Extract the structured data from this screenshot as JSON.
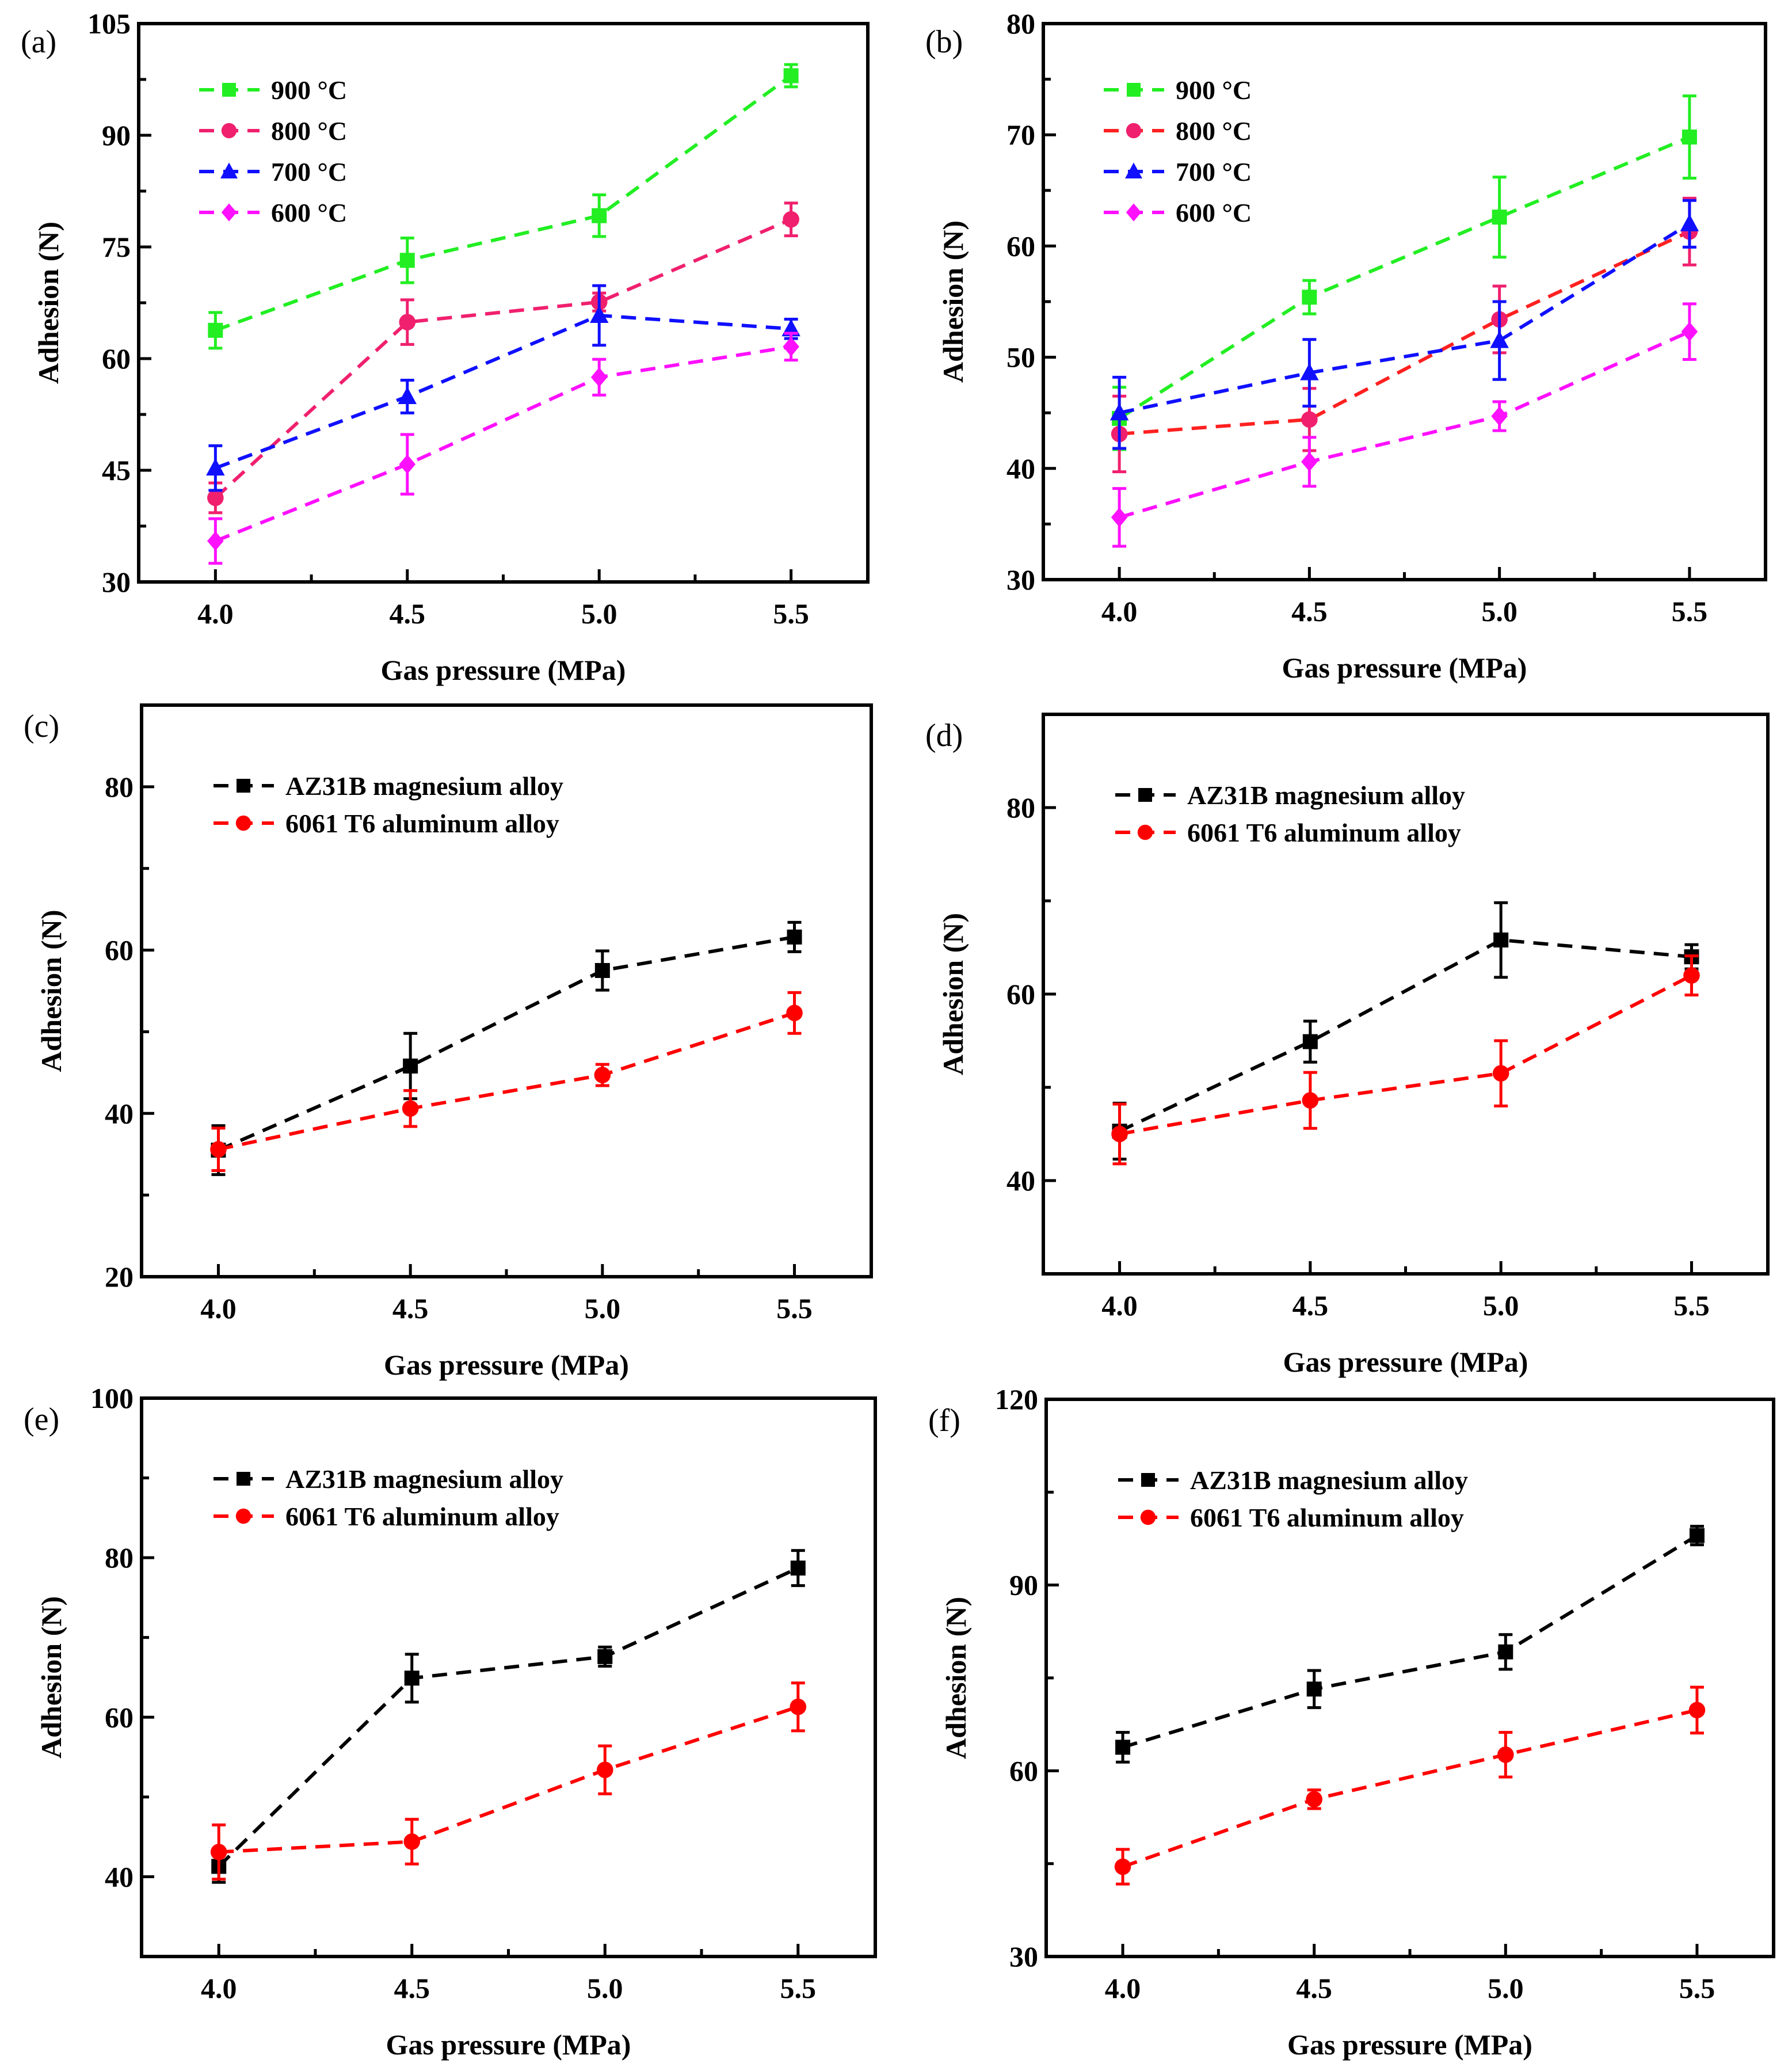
{
  "chart_data": [
    {
      "panel": "(a)",
      "type": "line",
      "xlabel": "Gas pressure (MPa)",
      "ylabel": "Adhesion (N)",
      "x": [
        4.0,
        4.5,
        5.0,
        5.5
      ],
      "xticks": [
        "4.0",
        "4.5",
        "5.0",
        "5.5"
      ],
      "xlim": [
        3.8,
        5.7
      ],
      "ylim": [
        30,
        105
      ],
      "yticks": [
        30,
        45,
        60,
        75,
        90,
        105
      ],
      "legend": "top-left",
      "series": [
        {
          "name": "900 °C",
          "marker": "square",
          "color": "#22ee22",
          "line_color": "#22ee22",
          "values": [
            63.8,
            73.2,
            79.2,
            98.0
          ],
          "errors": [
            2.4,
            3.0,
            2.8,
            1.5
          ]
        },
        {
          "name": "800 °C",
          "marker": "circle",
          "color": "#f0206e",
          "line_color": "#f0206e",
          "values": [
            41.3,
            64.9,
            67.6,
            78.7
          ],
          "errors": [
            2.0,
            3.0,
            1.2,
            2.2
          ]
        },
        {
          "name": "700 °C",
          "marker": "triangle",
          "color": "#1010ff",
          "line_color": "#1010ff",
          "values": [
            45.3,
            54.9,
            65.8,
            64.0
          ],
          "errors": [
            3.0,
            2.2,
            4.0,
            1.3
          ]
        },
        {
          "name": "600 °C",
          "marker": "diamond",
          "color": "#ff10ff",
          "line_color": "#ff10ff",
          "values": [
            35.5,
            45.8,
            57.5,
            61.6
          ],
          "errors": [
            3.0,
            4.0,
            2.4,
            1.8
          ]
        }
      ]
    },
    {
      "panel": "(b)",
      "type": "line",
      "xlabel": "Gas pressure (MPa)",
      "ylabel": "Adhesion (N)",
      "x": [
        4.0,
        4.5,
        5.0,
        5.5
      ],
      "xticks": [
        "4.0",
        "4.5",
        "5.0",
        "5.5"
      ],
      "xlim": [
        3.8,
        5.7
      ],
      "ylim": [
        30,
        80
      ],
      "yticks": [
        30,
        40,
        50,
        60,
        70,
        80
      ],
      "legend": "top-left",
      "series": [
        {
          "name": "900 °C",
          "marker": "square",
          "color": "#22ee22",
          "line_color": "#22ee22",
          "values": [
            44.5,
            55.4,
            62.6,
            69.8
          ],
          "errors": [
            2.8,
            1.5,
            3.6,
            3.7
          ]
        },
        {
          "name": "800 °C",
          "marker": "circle",
          "color": "#f0206e",
          "line_color": "#ff2020",
          "values": [
            43.1,
            44.4,
            53.4,
            61.3
          ],
          "errors": [
            3.4,
            2.8,
            3.0,
            3.0
          ]
        },
        {
          "name": "700 °C",
          "marker": "triangle",
          "color": "#1010ff",
          "line_color": "#1010ff",
          "values": [
            45.0,
            48.6,
            51.5,
            62.0
          ],
          "errors": [
            3.2,
            3.0,
            3.5,
            2.1
          ]
        },
        {
          "name": "600 °C",
          "marker": "diamond",
          "color": "#ff10ff",
          "line_color": "#ff10ff",
          "values": [
            35.6,
            40.6,
            44.7,
            52.3
          ],
          "errors": [
            2.6,
            2.2,
            1.3,
            2.5
          ]
        }
      ]
    },
    {
      "panel": "(c)",
      "type": "line",
      "xlabel": "Gas pressure (MPa)",
      "ylabel": "Adhesion (N)",
      "x": [
        4.0,
        4.5,
        5.0,
        5.5
      ],
      "xticks": [
        "4.0",
        "4.5",
        "5.0",
        "5.5"
      ],
      "xlim": [
        3.8,
        5.7
      ],
      "ylim": [
        20,
        90
      ],
      "yticks": [
        20,
        40,
        60,
        80
      ],
      "legend": "top-left",
      "series": [
        {
          "name": "AZ31B magnesium alloy",
          "marker": "square",
          "color": "#000000",
          "line_color": "#000000",
          "values": [
            35.5,
            45.8,
            57.5,
            61.6
          ],
          "errors": [
            3.0,
            4.0,
            2.4,
            1.8
          ]
        },
        {
          "name": "6061 T6 aluminum alloy",
          "marker": "circle",
          "color": "#ff0000",
          "line_color": "#ff0000",
          "values": [
            35.6,
            40.6,
            44.7,
            52.3
          ],
          "errors": [
            2.6,
            2.2,
            1.3,
            2.5
          ]
        }
      ]
    },
    {
      "panel": "(d)",
      "type": "line",
      "xlabel": "Gas pressure (MPa)",
      "ylabel": "Adhesion (N)",
      "x": [
        4.0,
        4.5,
        5.0,
        5.5
      ],
      "xticks": [
        "4.0",
        "4.5",
        "5.0",
        "5.5"
      ],
      "xlim": [
        3.8,
        5.7
      ],
      "ylim": [
        30,
        90
      ],
      "yticks": [
        40,
        60,
        80
      ],
      "legend": "top-left",
      "series": [
        {
          "name": "AZ31B magnesium alloy",
          "marker": "square",
          "color": "#000000",
          "line_color": "#000000",
          "values": [
            45.3,
            54.9,
            65.8,
            64.0
          ],
          "errors": [
            3.0,
            2.2,
            4.0,
            1.3
          ]
        },
        {
          "name": "6061 T6 aluminum alloy",
          "marker": "circle",
          "color": "#ff0000",
          "line_color": "#ff0000",
          "values": [
            45.0,
            48.6,
            51.5,
            62.0
          ],
          "errors": [
            3.2,
            3.0,
            3.5,
            2.1
          ]
        }
      ]
    },
    {
      "panel": "(e)",
      "type": "line",
      "xlabel": "Gas pressure (MPa)",
      "ylabel": "Adhesion (N)",
      "x": [
        4.0,
        4.5,
        5.0,
        5.5
      ],
      "xticks": [
        "4.0",
        "4.5",
        "5.0",
        "5.5"
      ],
      "xlim": [
        3.8,
        5.7
      ],
      "ylim": [
        30,
        100
      ],
      "yticks": [
        40,
        60,
        80,
        100
      ],
      "legend": "top-left",
      "series": [
        {
          "name": "AZ31B magnesium alloy",
          "marker": "square",
          "color": "#000000",
          "line_color": "#000000",
          "values": [
            41.3,
            64.9,
            67.6,
            78.7
          ],
          "errors": [
            2.0,
            3.0,
            1.2,
            2.2
          ]
        },
        {
          "name": "6061 T6 aluminum alloy",
          "marker": "circle",
          "color": "#ff0000",
          "line_color": "#ff0000",
          "values": [
            43.1,
            44.4,
            53.4,
            61.3
          ],
          "errors": [
            3.4,
            2.8,
            3.0,
            3.0
          ]
        }
      ]
    },
    {
      "panel": "(f)",
      "type": "line",
      "xlabel": "Gas pressure (MPa)",
      "ylabel": "Adhesion (N)",
      "x": [
        4.0,
        4.5,
        5.0,
        5.5
      ],
      "xticks": [
        "4.0",
        "4.5",
        "5.0",
        "5.5"
      ],
      "xlim": [
        3.8,
        5.7
      ],
      "ylim": [
        30,
        120
      ],
      "yticks": [
        30,
        60,
        90,
        120
      ],
      "legend": "top-left",
      "series": [
        {
          "name": "AZ31B magnesium alloy",
          "marker": "square",
          "color": "#000000",
          "line_color": "#000000",
          "values": [
            63.8,
            73.2,
            79.2,
            98.0
          ],
          "errors": [
            2.4,
            3.0,
            2.8,
            1.5
          ]
        },
        {
          "name": "6061 T6 aluminum alloy",
          "marker": "circle",
          "color": "#ff0000",
          "line_color": "#ff0000",
          "values": [
            44.5,
            55.4,
            62.6,
            69.8
          ],
          "errors": [
            2.8,
            1.5,
            3.6,
            3.7
          ]
        }
      ]
    }
  ]
}
